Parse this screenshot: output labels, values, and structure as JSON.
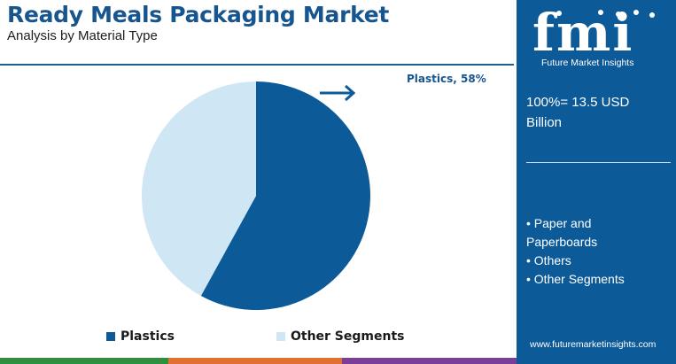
{
  "header": {
    "title": "Ready Meals Packaging Market",
    "subtitle": "Analysis by Material Type"
  },
  "chart_data": {
    "type": "pie",
    "title": "Ready Meals Packaging Market",
    "subtitle": "Analysis by Material Type",
    "slices": [
      {
        "name": "Plastics",
        "value": 58,
        "color": "#0d5a98"
      },
      {
        "name": "Other Segments",
        "value": 42,
        "color": "#cfe6f5"
      }
    ],
    "annotation": "Plastics, 58%",
    "legend": [
      "Plastics",
      "Other Segments"
    ],
    "legend_position": "bottom"
  },
  "colors": {
    "brand_blue": "#0d5a98",
    "title_blue": "#17558f",
    "light_blue": "#cfe6f5",
    "strip": [
      "#2f8f3e",
      "#e0712f",
      "#7a3e96"
    ]
  },
  "side_panel": {
    "logo_letters": "fmi",
    "logo_caption": "Future Market Insights",
    "total_text": "100%= 13.5 USD Billion",
    "other_segments": [
      "• Paper and Paperboards",
      "• Others",
      "• Other Segments"
    ],
    "website": "www.futuremarketinsights.com"
  },
  "icons": [
    "arrow-right-icon"
  ]
}
